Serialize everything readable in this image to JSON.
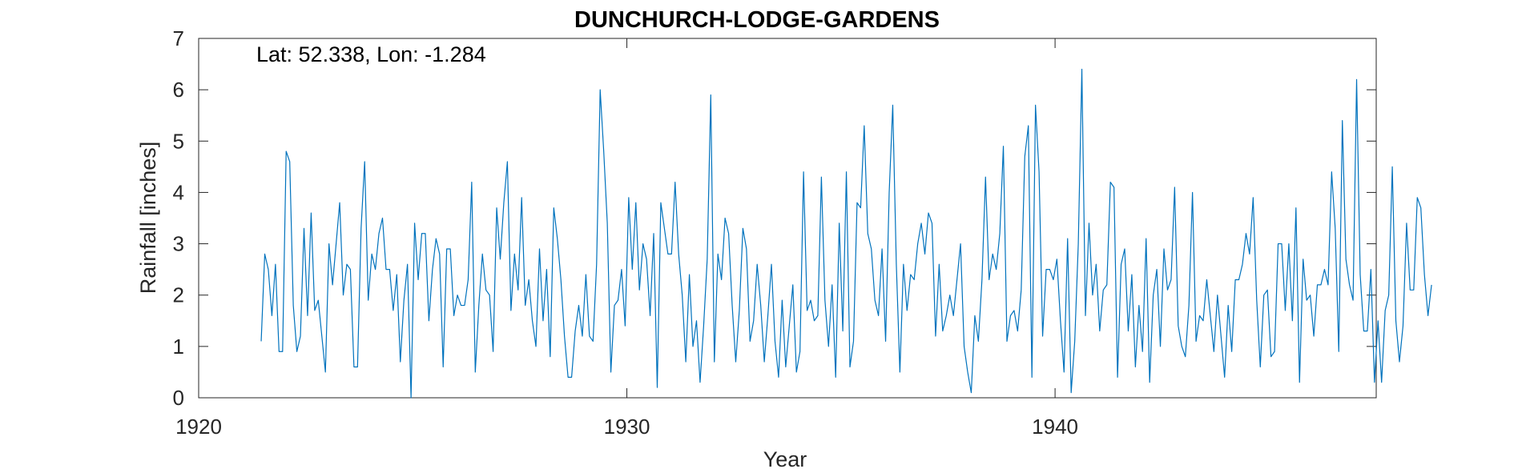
{
  "chart_data": {
    "type": "line",
    "title": "DUNCHURCH-LODGE-GARDENS",
    "annotation": "Lat: 52.338, Lon: -1.284",
    "xlabel": "Year",
    "ylabel": "Rainfall [inches]",
    "xlim": [
      1920,
      1947.5
    ],
    "ylim": [
      0,
      7
    ],
    "xticks": [
      1920,
      1930,
      1940
    ],
    "yticks": [
      0,
      1,
      2,
      3,
      4,
      5,
      6,
      7
    ],
    "grid": false,
    "line_color": "#0072BD",
    "series": [
      {
        "x_start": 1921.46,
        "x_step": 0.08333,
        "values": [
          1.1,
          2.8,
          2.5,
          1.6,
          2.6,
          0.9,
          0.9,
          4.8,
          4.6,
          1.8,
          0.9,
          1.2,
          3.3,
          1.6,
          3.6,
          1.7,
          1.9,
          1.2,
          0.5,
          3.0,
          2.2,
          3.0,
          3.8,
          2.0,
          2.6,
          2.5,
          0.6,
          0.6,
          3.3,
          4.6,
          1.9,
          2.8,
          2.5,
          3.2,
          3.5,
          2.5,
          2.5,
          1.7,
          2.4,
          0.7,
          1.9,
          2.6,
          0.0,
          3.4,
          2.3,
          3.2,
          3.2,
          1.5,
          2.5,
          3.1,
          2.8,
          0.6,
          2.9,
          2.9,
          1.6,
          2.0,
          1.8,
          1.8,
          2.3,
          4.2,
          0.5,
          1.8,
          2.8,
          2.1,
          2.0,
          0.9,
          3.7,
          2.7,
          3.8,
          4.6,
          1.7,
          2.8,
          2.1,
          3.9,
          1.8,
          2.3,
          1.5,
          1.0,
          2.9,
          1.5,
          2.5,
          0.8,
          3.7,
          3.1,
          2.3,
          1.2,
          0.4,
          0.4,
          1.3,
          1.8,
          1.2,
          2.4,
          1.2,
          1.1,
          2.6,
          6.0,
          4.8,
          3.4,
          0.5,
          1.8,
          1.9,
          2.5,
          1.4,
          3.9,
          2.5,
          3.8,
          2.1,
          3.0,
          2.7,
          1.6,
          3.2,
          0.2,
          3.8,
          3.3,
          2.8,
          2.8,
          4.2,
          2.8,
          2.0,
          0.7,
          2.4,
          1.0,
          1.5,
          0.3,
          1.4,
          2.7,
          5.9,
          0.7,
          2.8,
          2.3,
          3.5,
          3.2,
          1.8,
          0.7,
          1.7,
          3.3,
          2.9,
          1.1,
          1.5,
          2.6,
          1.8,
          0.7,
          1.6,
          2.6,
          1.1,
          0.4,
          1.9,
          0.6,
          1.4,
          2.2,
          0.5,
          0.9,
          4.4,
          1.7,
          1.9,
          1.5,
          1.6,
          4.3,
          1.9,
          1.0,
          2.2,
          0.4,
          3.4,
          1.3,
          4.4,
          0.6,
          1.1,
          3.8,
          3.7,
          5.3,
          3.2,
          2.9,
          1.9,
          1.6,
          2.9,
          1.1,
          4.0,
          5.7,
          2.6,
          0.5,
          2.6,
          1.7,
          2.4,
          2.3,
          3.0,
          3.4,
          2.8,
          3.6,
          3.4,
          1.2,
          2.6,
          1.3,
          1.6,
          2.0,
          1.6,
          2.3,
          3.0,
          1.0,
          0.5,
          0.1,
          1.6,
          1.1,
          2.3,
          4.3,
          2.3,
          2.8,
          2.5,
          3.2,
          4.9,
          1.1,
          1.6,
          1.7,
          1.3,
          2.1,
          4.7,
          5.3,
          0.4,
          5.7,
          4.4,
          1.2,
          2.5,
          2.5,
          2.3,
          2.7,
          1.5,
          0.5,
          3.1,
          0.1,
          1.1,
          3.0,
          6.4,
          1.6,
          3.4,
          2.0,
          2.6,
          1.3,
          2.1,
          2.2,
          4.2,
          4.1,
          0.4,
          2.6,
          2.9,
          1.3,
          2.4,
          0.6,
          1.8,
          0.9,
          3.1,
          0.3,
          2.0,
          2.5,
          1.0,
          2.9,
          2.1,
          2.3,
          4.1,
          1.4,
          1.0,
          0.8,
          1.8,
          4.0,
          1.1,
          1.6,
          1.5,
          2.3,
          1.6,
          0.9,
          2.0,
          1.2,
          0.4,
          1.8,
          0.9,
          2.3,
          2.3,
          2.6,
          3.2,
          2.8,
          3.9,
          1.9,
          0.6,
          2.0,
          2.1,
          0.8,
          0.9,
          3.0,
          3.0,
          1.7,
          3.0,
          1.5,
          3.7,
          0.3,
          2.7,
          1.9,
          2.0,
          1.2,
          2.2,
          2.2,
          2.5,
          2.2,
          4.4,
          3.3,
          0.9,
          5.4,
          2.7,
          2.2,
          1.9,
          6.2,
          2.4,
          1.3,
          1.3,
          2.5,
          0.3,
          1.5,
          0.3,
          1.7,
          2.0,
          4.5,
          1.5,
          0.7,
          1.4,
          3.4,
          2.1,
          2.1,
          3.9,
          3.7,
          2.4,
          1.6,
          2.2
        ]
      }
    ]
  }
}
